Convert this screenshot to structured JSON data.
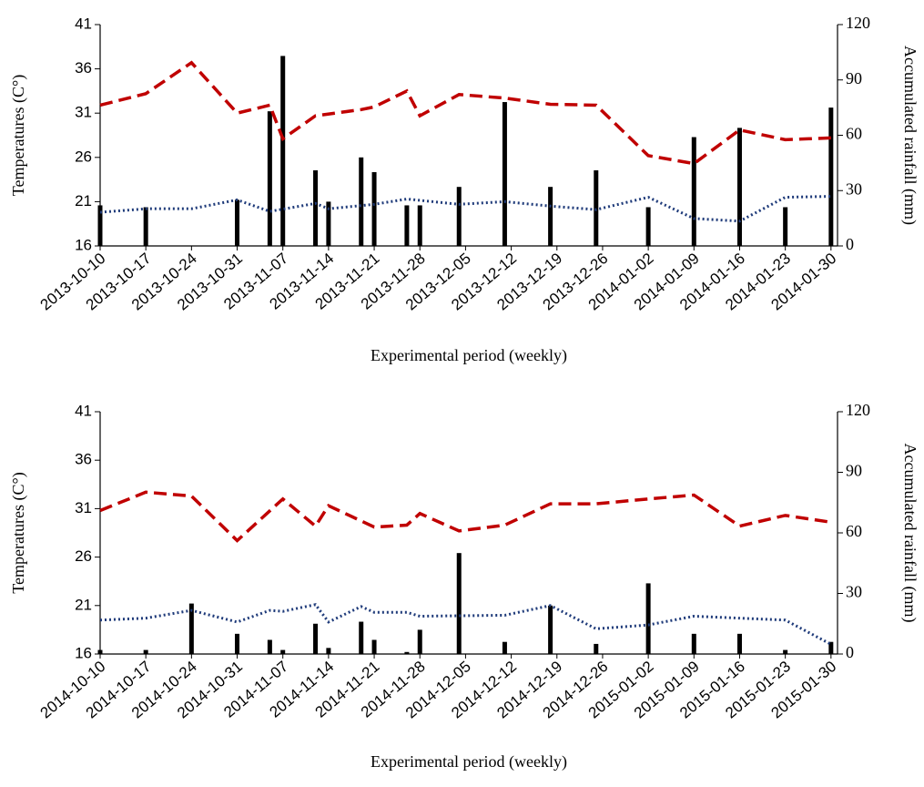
{
  "chart_data": [
    {
      "type": "combo",
      "y_label": "Temperatures (C°)",
      "y2_label": "Accumulated rainfall (mm)",
      "x_label": "Experimental period (weekly)",
      "xlim": [
        "2013-10-10",
        "2014-01-31"
      ],
      "xticks": [
        "2013-10-10",
        "2013-10-17",
        "2013-10-24",
        "2013-10-31",
        "2013-11-07",
        "2013-11-14",
        "2013-11-21",
        "2013-11-28",
        "2013-12-05",
        "2013-12-12",
        "2013-12-19",
        "2013-12-26",
        "2014-01-02",
        "2014-01-09",
        "2014-01-16",
        "2014-01-23",
        "2014-01-30"
      ],
      "ylim": [
        16,
        41
      ],
      "yticks": [
        16,
        21,
        26,
        31,
        36,
        41
      ],
      "y2lim": [
        0,
        120
      ],
      "y2ticks": [
        0,
        30,
        60,
        90,
        120
      ],
      "grid": false,
      "series": [
        {
          "type": "bar",
          "axis": "y2",
          "color": "#000000",
          "x": [
            "2013-10-10",
            "2013-10-17",
            "2013-10-31",
            "2013-11-05",
            "2013-11-07",
            "2013-11-12",
            "2013-11-14",
            "2013-11-19",
            "2013-11-21",
            "2013-11-26",
            "2013-11-28",
            "2013-12-04",
            "2013-12-11",
            "2013-12-18",
            "2013-12-25",
            "2014-01-02",
            "2014-01-09",
            "2014-01-16",
            "2014-01-23",
            "2014-01-30"
          ],
          "values": [
            22,
            21,
            25,
            73,
            103,
            41,
            24,
            48,
            40,
            22,
            22,
            32,
            78,
            32,
            41,
            21,
            59,
            64,
            21,
            75
          ]
        },
        {
          "type": "line",
          "style": "dashed",
          "color": "#c00000",
          "x": [
            "2013-10-10",
            "2013-10-17",
            "2013-10-24",
            "2013-10-31",
            "2013-11-05",
            "2013-11-07",
            "2013-11-12",
            "2013-11-19",
            "2013-11-21",
            "2013-11-26",
            "2013-11-28",
            "2013-12-04",
            "2013-12-11",
            "2013-12-18",
            "2013-12-25",
            "2014-01-02",
            "2014-01-09",
            "2014-01-16",
            "2014-01-23",
            "2014-01-30"
          ],
          "values": [
            31.9,
            33.2,
            36.7,
            31.0,
            31.9,
            28.1,
            30.7,
            31.4,
            31.7,
            33.5,
            30.7,
            33.1,
            32.7,
            32.0,
            31.9,
            26.2,
            25.3,
            29.1,
            28.0,
            28.2
          ]
        },
        {
          "type": "line",
          "style": "dotted",
          "color": "#1f3b7a",
          "x": [
            "2013-10-10",
            "2013-10-17",
            "2013-10-24",
            "2013-10-31",
            "2013-11-05",
            "2013-11-12",
            "2013-11-14",
            "2013-11-21",
            "2013-11-26",
            "2013-12-04",
            "2013-12-11",
            "2013-12-18",
            "2013-12-25",
            "2014-01-02",
            "2014-01-09",
            "2014-01-16",
            "2014-01-23",
            "2014-01-30"
          ],
          "values": [
            19.8,
            20.2,
            20.2,
            21.2,
            19.9,
            20.8,
            20.2,
            20.7,
            21.3,
            20.7,
            21.0,
            20.5,
            20.1,
            21.5,
            19.1,
            18.8,
            21.5,
            21.6
          ]
        }
      ]
    },
    {
      "type": "combo",
      "y_label": "Temperatures (C°)",
      "y2_label": "Accumulated rainfall (mm)",
      "x_label": "Experimental period (weekly)",
      "xlim": [
        "2014-10-10",
        "2015-01-31"
      ],
      "xticks": [
        "2014-10-10",
        "2014-10-17",
        "2014-10-24",
        "2014-10-31",
        "2014-11-07",
        "2014-11-14",
        "2014-11-21",
        "2014-11-28",
        "2014-12-05",
        "2014-12-12",
        "2014-12-19",
        "2014-12-26",
        "2015-01-02",
        "2015-01-09",
        "2015-01-16",
        "2015-01-23",
        "2015-01-30"
      ],
      "ylim": [
        16,
        41
      ],
      "yticks": [
        16,
        21,
        26,
        31,
        36,
        41
      ],
      "y2lim": [
        0,
        120
      ],
      "y2ticks": [
        0,
        30,
        60,
        90,
        120
      ],
      "grid": false,
      "series": [
        {
          "type": "bar",
          "axis": "y2",
          "color": "#000000",
          "x": [
            "2014-10-10",
            "2014-10-17",
            "2014-10-24",
            "2014-10-31",
            "2014-11-05",
            "2014-11-07",
            "2014-11-12",
            "2014-11-14",
            "2014-11-19",
            "2014-11-21",
            "2014-11-26",
            "2014-11-28",
            "2014-12-04",
            "2014-12-11",
            "2014-12-18",
            "2014-12-25",
            "2015-01-02",
            "2015-01-09",
            "2015-01-16",
            "2015-01-23",
            "2015-01-30"
          ],
          "values": [
            2,
            2,
            25,
            10,
            7,
            2,
            15,
            3,
            16,
            7,
            1,
            12,
            50,
            6,
            24,
            5,
            35,
            10,
            10,
            2,
            6
          ]
        },
        {
          "type": "line",
          "style": "dashed",
          "color": "#c00000",
          "x": [
            "2014-10-10",
            "2014-10-17",
            "2014-10-24",
            "2014-10-31",
            "2014-11-07",
            "2014-11-12",
            "2014-11-14",
            "2014-11-21",
            "2014-11-26",
            "2014-11-28",
            "2014-12-04",
            "2014-12-11",
            "2014-12-18",
            "2014-12-25",
            "2015-01-02",
            "2015-01-09",
            "2015-01-16",
            "2015-01-23",
            "2015-01-30"
          ],
          "values": [
            30.8,
            32.7,
            32.3,
            27.7,
            32.0,
            29.2,
            31.3,
            29.1,
            29.3,
            30.5,
            28.7,
            29.3,
            31.5,
            31.5,
            32.0,
            32.4,
            29.2,
            30.3,
            29.6
          ]
        },
        {
          "type": "line",
          "style": "dotted",
          "color": "#1f3b7a",
          "x": [
            "2014-10-10",
            "2014-10-17",
            "2014-10-24",
            "2014-10-31",
            "2014-11-05",
            "2014-11-07",
            "2014-11-12",
            "2014-11-14",
            "2014-11-19",
            "2014-11-21",
            "2014-11-26",
            "2014-11-28",
            "2014-12-11",
            "2014-12-18",
            "2014-12-25",
            "2015-01-02",
            "2015-01-09",
            "2015-01-23",
            "2015-01-30"
          ],
          "values": [
            19.5,
            19.7,
            20.5,
            19.3,
            20.5,
            20.4,
            21.1,
            19.3,
            20.9,
            20.3,
            20.3,
            19.9,
            20.0,
            21.0,
            18.6,
            19.0,
            19.9,
            19.5,
            17.0
          ]
        }
      ]
    }
  ]
}
